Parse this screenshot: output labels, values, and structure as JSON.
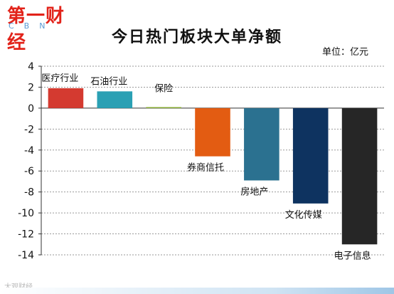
{
  "logo": {
    "text": "第一财经",
    "sub": "CBN"
  },
  "watermark": "大观财经",
  "chart_data": {
    "type": "bar",
    "title": "今日热门板块大单净额",
    "unit_label": "单位：亿元",
    "categories": [
      "医疗行业",
      "石油行业",
      "保险",
      "券商信托",
      "房地产",
      "文化传媒",
      "电子信息"
    ],
    "values": [
      1.9,
      1.6,
      0.1,
      -4.6,
      -6.9,
      -9.1,
      -13.0
    ],
    "colors": [
      "#d43a30",
      "#2aa0b4",
      "#8fb33a",
      "#e35c12",
      "#2b7190",
      "#0e3360",
      "#262626"
    ],
    "ylim": [
      -14,
      4
    ],
    "yticks": [
      4,
      2,
      0,
      -2,
      -4,
      -6,
      -8,
      -10,
      -12,
      -14
    ],
    "grid": true,
    "legend": "none"
  }
}
